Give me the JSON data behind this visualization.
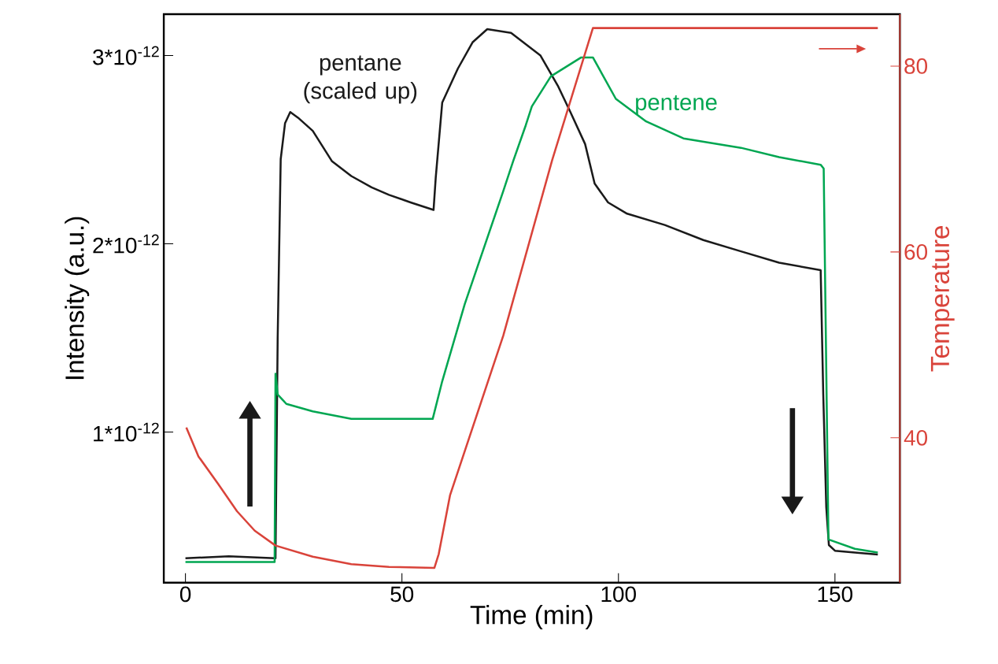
{
  "chart_data": {
    "type": "line",
    "xlabel": "Time (min)",
    "ylabel": "Intensity (a.u.)",
    "y2label": "Temperature",
    "xlim": [
      -5,
      165
    ],
    "xticks": [
      0,
      50,
      100,
      150
    ],
    "ylim": [
      2e-13,
      3.22e-12
    ],
    "yticks": [
      {
        "value": 1e-12,
        "label": "1*10$^{-12}$"
      },
      {
        "value": 2e-12,
        "label": "2*10$^{-12}$"
      },
      {
        "value": 3e-12,
        "label": "3*10$^{-12}$"
      }
    ],
    "y2lim": [
      24.4,
      85.6
    ],
    "y2ticks": [
      40,
      60,
      80
    ],
    "marker": "none",
    "line_style": "solid",
    "series": [
      {
        "name": "pentane (scaled up)",
        "color": "#1a1a1a",
        "x": [
          0,
          10,
          20.8,
          21.3,
          22,
          23,
          24.2,
          26,
          29.4,
          33.8,
          38.3,
          43,
          47,
          52,
          57.3,
          57.8,
          59.3,
          62.9,
          66.3,
          69.7,
          75.2,
          82,
          86,
          88.9,
          92.3,
          94.5,
          97.6,
          102,
          110.7,
          119.6,
          128.3,
          137.1,
          146.7,
          147.3,
          148,
          148.6,
          150,
          154.6,
          159.9
        ],
        "values": [
          3.3e-13,
          3.4e-13,
          3.3e-13,
          1.5e-12,
          2.45e-12,
          2.64e-12,
          2.7e-12,
          2.67e-12,
          2.6e-12,
          2.44e-12,
          2.36e-12,
          2.3e-12,
          2.26e-12,
          2.22e-12,
          2.18e-12,
          2.35e-12,
          2.75e-12,
          2.93e-12,
          3.07e-12,
          3.14e-12,
          3.12e-12,
          3e-12,
          2.84e-12,
          2.7e-12,
          2.53e-12,
          2.32e-12,
          2.22e-12,
          2.16e-12,
          2.1e-12,
          2.02e-12,
          1.96e-12,
          1.9e-12,
          1.86e-12,
          1.2e-12,
          6e-13,
          4e-13,
          3.7e-13,
          3.6e-13,
          3.5e-13
        ]
      },
      {
        "name": "pentene",
        "color": "#00a651",
        "x": [
          0,
          10,
          20.6,
          20.8,
          21.3,
          23.3,
          29.4,
          38.3,
          47,
          57.1,
          59.3,
          64.5,
          73.4,
          75.7,
          78.6,
          80,
          84.4,
          91.4,
          94.1,
          99.4,
          106.4,
          115,
          128.3,
          137.1,
          146.7,
          147.4,
          148.5,
          154.6,
          159.9
        ],
        "values": [
          3.1e-13,
          3.1e-13,
          3.1e-13,
          1.31e-12,
          1.2e-12,
          1.15e-12,
          1.11e-12,
          1.07e-12,
          1.07e-12,
          1.07e-12,
          1.27e-12,
          1.68e-12,
          2.28e-12,
          2.44e-12,
          2.63e-12,
          2.73e-12,
          2.89e-12,
          2.99e-12,
          2.99e-12,
          2.77e-12,
          2.65e-12,
          2.56e-12,
          2.51e-12,
          2.46e-12,
          2.42e-12,
          2.4e-12,
          4.3e-13,
          3.8e-13,
          3.6e-13
        ]
      },
      {
        "color": "#d9433a",
        "axis": "y2",
        "x": [
          0.2,
          3,
          7.6,
          11.9,
          16,
          20.8,
          29.4,
          38.3,
          47,
          57.5,
          58.5,
          61.1,
          73.4,
          84.7,
          94.1,
          120,
          159.9
        ],
        "values": [
          41.1,
          38,
          35,
          32.1,
          30,
          28.4,
          27.2,
          26.4,
          26.1,
          26.0,
          27.5,
          33.8,
          51.0,
          69.9,
          84.1,
          84.1,
          84.1
        ]
      }
    ]
  }
}
